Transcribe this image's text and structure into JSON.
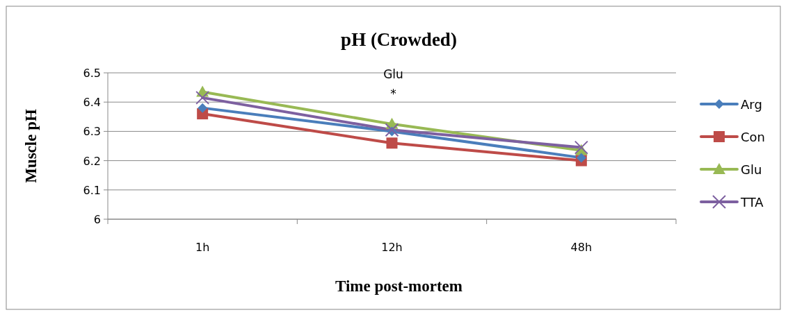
{
  "chart_data": {
    "type": "line",
    "title": "pH (Crowded)",
    "xlabel": "Time post-mortem",
    "ylabel": "Muscle pH",
    "categories": [
      "1h",
      "12h",
      "48h"
    ],
    "series": [
      {
        "name": "Arg",
        "color": "#4a7ebb",
        "marker": "diamond",
        "values": [
          6.38,
          6.3,
          6.21
        ]
      },
      {
        "name": "Con",
        "color": "#be4b48",
        "marker": "square",
        "values": [
          6.36,
          6.26,
          6.2
        ]
      },
      {
        "name": "Glu",
        "color": "#98b954",
        "marker": "triangle",
        "values": [
          6.435,
          6.325,
          6.235
        ]
      },
      {
        "name": "TTA",
        "color": "#7d60a0",
        "marker": "cross",
        "values": [
          6.415,
          6.305,
          6.245
        ]
      }
    ],
    "ylim": [
      6,
      6.5
    ],
    "yticks": [
      {
        "value": 6,
        "label": "6"
      },
      6.1,
      6.2,
      6.3,
      6.4,
      6.5
    ],
    "grid": "y",
    "legend": "right",
    "annotations": [
      "Glu",
      "*"
    ]
  }
}
